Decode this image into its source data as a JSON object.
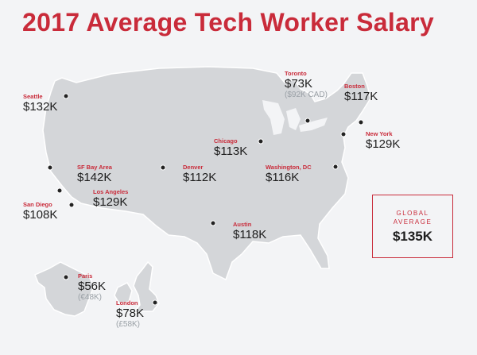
{
  "title": "2017 Average Tech Worker Salary",
  "colors": {
    "accent": "#c92b3a",
    "map_fill": "#d4d6d9",
    "map_stroke": "#ffffff",
    "dot": "#222222",
    "background": "#f3f4f6"
  },
  "cities": [
    {
      "id": "seattle",
      "name": "Seattle",
      "salary": "$132K"
    },
    {
      "id": "sf-bay-area",
      "name": "SF Bay Area",
      "salary": "$142K"
    },
    {
      "id": "los-angeles",
      "name": "Los Angeles",
      "salary": "$129K"
    },
    {
      "id": "san-diego",
      "name": "San Diego",
      "salary": "$108K"
    },
    {
      "id": "denver",
      "name": "Denver",
      "salary": "$112K"
    },
    {
      "id": "austin",
      "name": "Austin",
      "salary": "$118K"
    },
    {
      "id": "chicago",
      "name": "Chicago",
      "salary": "$113K"
    },
    {
      "id": "toronto",
      "name": "Toronto",
      "salary": "$73K",
      "local": "($92K CAD)"
    },
    {
      "id": "boston",
      "name": "Boston",
      "salary": "$117K"
    },
    {
      "id": "new-york",
      "name": "New York",
      "salary": "$129K"
    },
    {
      "id": "washington-dc",
      "name": "Washington, DC",
      "salary": "$116K"
    },
    {
      "id": "paris",
      "name": "Paris",
      "salary": "$56K",
      "local": "(€48K)"
    },
    {
      "id": "london",
      "name": "London",
      "salary": "$78K",
      "local": "(£58K)"
    }
  ],
  "global_average": {
    "label_line1": "GLOBAL",
    "label_line2": "AVERAGE",
    "value": "$135K"
  }
}
